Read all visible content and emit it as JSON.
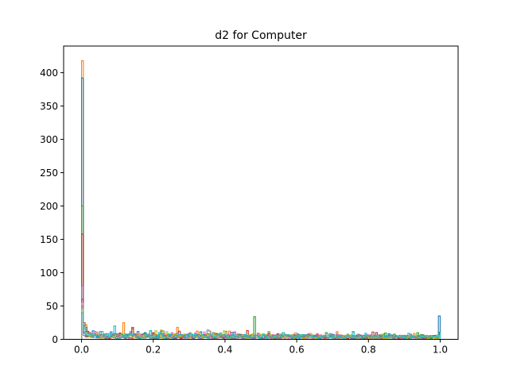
{
  "chart_data": {
    "type": "histogram",
    "title": "d2 for Computer",
    "xlabel": "",
    "ylabel": "",
    "xlim": [
      -0.05,
      1.05
    ],
    "ylim": [
      0,
      440
    ],
    "xticks": [
      0.0,
      0.2,
      0.4,
      0.6,
      0.8,
      1.0
    ],
    "xtick_labels": [
      "0.0",
      "0.2",
      "0.4",
      "0.6",
      "0.8",
      "1.0"
    ],
    "yticks": [
      0,
      50,
      100,
      150,
      200,
      250,
      300,
      350,
      400
    ],
    "ytick_labels": [
      "0",
      "50",
      "100",
      "150",
      "200",
      "250",
      "300",
      "350",
      "400"
    ],
    "histtype": "step",
    "grid": false,
    "legend": "none",
    "colors": [
      "#1f77b4",
      "#ff7f0e",
      "#2ca02c",
      "#d62728",
      "#9467bd",
      "#8c564b",
      "#e377c2",
      "#7f7f7f",
      "#bcbd22",
      "#17becf"
    ],
    "series": [
      {
        "color": "#ff7f0e",
        "peaks": [
          [
            0.0,
            418
          ],
          [
            0.003,
            60
          ],
          [
            0.01,
            22
          ],
          [
            0.115,
            25
          ],
          [
            0.265,
            18
          ],
          [
            0.5,
            6
          ],
          [
            1.0,
            8
          ]
        ]
      },
      {
        "color": "#1f77b4",
        "peaks": [
          [
            0.0,
            392
          ],
          [
            0.003,
            55
          ],
          [
            0.01,
            18
          ],
          [
            0.2,
            9
          ],
          [
            0.45,
            7
          ],
          [
            0.78,
            5
          ],
          [
            1.0,
            35
          ]
        ]
      },
      {
        "color": "#2ca02c",
        "peaks": [
          [
            0.0,
            200
          ],
          [
            0.003,
            40
          ],
          [
            0.012,
            15
          ],
          [
            0.3,
            8
          ],
          [
            0.48,
            34
          ],
          [
            0.68,
            10
          ],
          [
            1.0,
            10
          ]
        ]
      },
      {
        "color": "#d62728",
        "peaks": [
          [
            0.0,
            158
          ],
          [
            0.003,
            35
          ],
          [
            0.015,
            12
          ],
          [
            0.14,
            16
          ],
          [
            0.5,
            6
          ],
          [
            0.82,
            10
          ],
          [
            1.0,
            8
          ]
        ]
      },
      {
        "color": "#9467bd",
        "peaks": [
          [
            0.0,
            80
          ],
          [
            0.004,
            30
          ],
          [
            0.02,
            10
          ],
          [
            0.62,
            7
          ],
          [
            0.9,
            6
          ],
          [
            1.0,
            9
          ]
        ]
      },
      {
        "color": "#8c564b",
        "peaks": [
          [
            0.0,
            60
          ],
          [
            0.005,
            25
          ],
          [
            0.02,
            10
          ],
          [
            0.14,
            18
          ],
          [
            0.37,
            9
          ],
          [
            0.81,
            11
          ],
          [
            1.0,
            7
          ]
        ]
      },
      {
        "color": "#e377c2",
        "peaks": [
          [
            0.0,
            55
          ],
          [
            0.005,
            20
          ],
          [
            0.025,
            9
          ],
          [
            0.34,
            11
          ],
          [
            0.6,
            6
          ],
          [
            0.99,
            6
          ]
        ]
      },
      {
        "color": "#7f7f7f",
        "peaks": [
          [
            0.0,
            50
          ],
          [
            0.005,
            20
          ],
          [
            0.03,
            8
          ],
          [
            0.35,
            14
          ],
          [
            0.57,
            7
          ],
          [
            0.95,
            7
          ]
        ]
      },
      {
        "color": "#bcbd22",
        "peaks": [
          [
            0.0,
            45
          ],
          [
            0.006,
            18
          ],
          [
            0.03,
            8
          ],
          [
            0.22,
            14
          ],
          [
            0.4,
            10
          ],
          [
            0.74,
            8
          ],
          [
            1.0,
            6
          ]
        ]
      },
      {
        "color": "#17becf",
        "peaks": [
          [
            0.0,
            40
          ],
          [
            0.006,
            16
          ],
          [
            0.035,
            7
          ],
          [
            0.09,
            20
          ],
          [
            0.19,
            13
          ],
          [
            0.56,
            10
          ],
          [
            0.79,
            9
          ],
          [
            1.0,
            9
          ]
        ]
      }
    ]
  }
}
